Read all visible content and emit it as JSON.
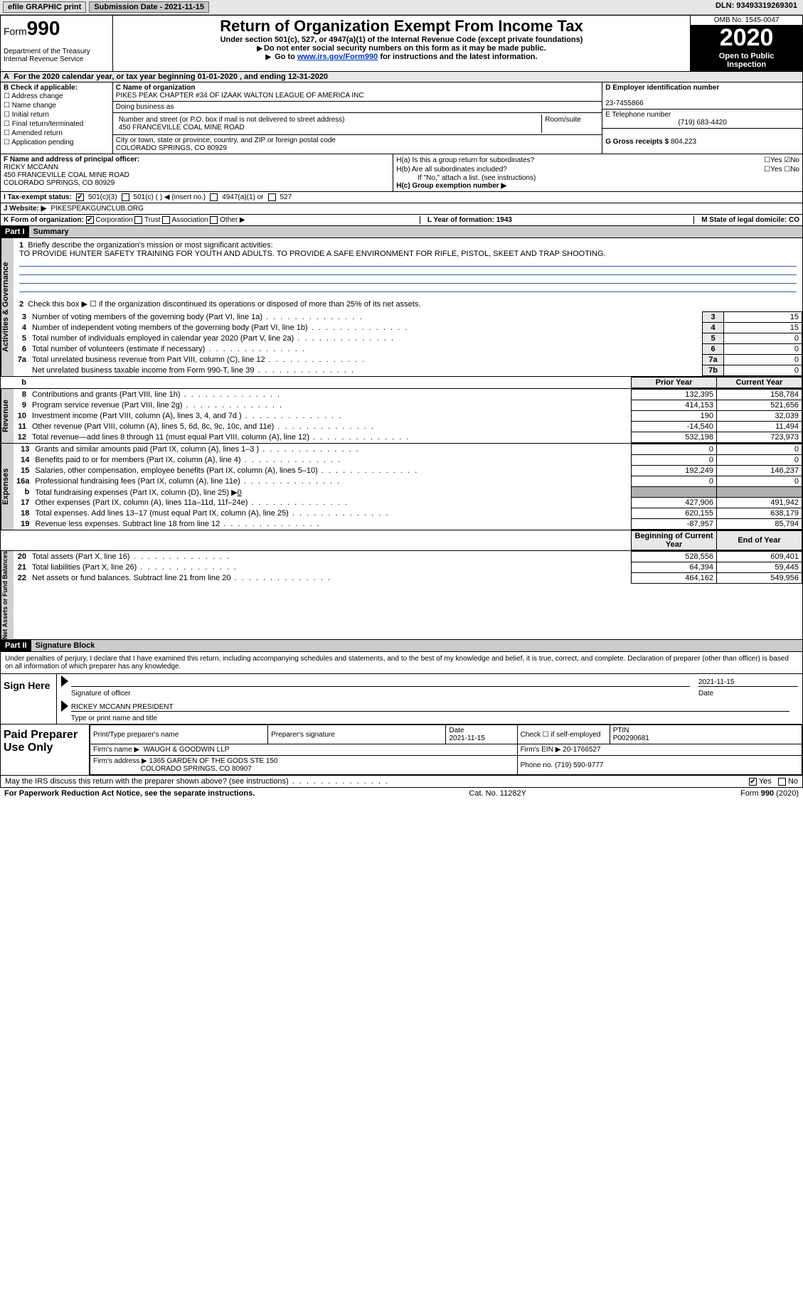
{
  "topbar": {
    "efile": "efile GRAPHIC print",
    "submission_label": "Submission Date - 2021-11-15",
    "dln": "DLN: 93493319269301"
  },
  "header": {
    "form_label": "Form",
    "form_no": "990",
    "dept1": "Department of the Treasury",
    "dept2": "Internal Revenue Service",
    "title": "Return of Organization Exempt From Income Tax",
    "sub1": "Under section 501(c), 527, or 4947(a)(1) of the Internal Revenue Code (except private foundations)",
    "sub2": "Do not enter social security numbers on this form as it may be made public.",
    "sub3_pre": "Go to ",
    "sub3_link": "www.irs.gov/Form990",
    "sub3_post": " for instructions and the latest information.",
    "omb": "OMB No. 1545-0047",
    "year": "2020",
    "inspect1": "Open to Public",
    "inspect2": "Inspection"
  },
  "tax_year_line": "For the 2020 calendar year, or tax year beginning 01-01-2020   , and ending 12-31-2020",
  "box_b": {
    "title": "B Check if applicable:",
    "items": [
      "Address change",
      "Name change",
      "Initial return",
      "Final return/terminated",
      "Amended return",
      "Application pending"
    ]
  },
  "box_c": {
    "name_label": "C Name of organization",
    "name": "PIKES PEAK CHAPTER #34 OF IZAAK WALTON LEAGUE OF AMERICA INC",
    "dba_label": "Doing business as",
    "street_label": "Number and street (or P.O. box if mail is not delivered to street address)",
    "street": "450 FRANCEVILLE COAL MINE ROAD",
    "room_label": "Room/suite",
    "city_label": "City or town, state or province, country, and ZIP or foreign postal code",
    "city": "COLORADO SPRINGS, CO  80929"
  },
  "box_d": {
    "ein_label": "D Employer identification number",
    "ein": "23-7455866",
    "phone_label": "E Telephone number",
    "phone": "(719) 683-4420",
    "gross_label": "G Gross receipts $ ",
    "gross": "804,223"
  },
  "box_f": {
    "label": "F  Name and address of principal officer:",
    "name": "RICKY MCCANN",
    "addr1": "450 FRANCEVILLE COAL MINE ROAD",
    "addr2": "COLORADO SPRINGS, CO  80929"
  },
  "box_h": {
    "a_label": "H(a)  Is this a group return for subordinates?",
    "a_yes": "Yes",
    "a_no": "No",
    "b_label": "H(b)  Are all subordinates included?",
    "b_note": "If \"No,\" attach a list. (see instructions)",
    "c_label": "H(c)  Group exemption number ▶"
  },
  "row_i": {
    "label": "I   Tax-exempt status:",
    "o1": "501(c)(3)",
    "o2": "501(c) (  ) ◀ (insert no.)",
    "o3": "4947(a)(1) or",
    "o4": "527"
  },
  "row_j": {
    "label": "J   Website: ▶",
    "value": "PIKESPEAKGUNCLUB.ORG"
  },
  "row_k": {
    "label": "K Form of organization:",
    "o1": "Corporation",
    "o2": "Trust",
    "o3": "Association",
    "o4": "Other ▶"
  },
  "row_lm": {
    "l": "L Year of formation: 1943",
    "m": "M State of legal domicile: CO"
  },
  "part1": {
    "head": "Part I",
    "title": "Summary",
    "vtab1": "Activities & Governance",
    "q1": "Briefly describe the organization's mission or most significant activities:",
    "mission": "TO PROVIDE HUNTER SAFETY TRAINING FOR YOUTH AND ADULTS. TO PROVIDE A SAFE ENVIRONMENT FOR RIFLE, PISTOL, SKEET AND TRAP SHOOTING.",
    "q2": "Check this box ▶ ☐  if the organization discontinued its operations or disposed of more than 25% of its net assets.",
    "lines_gov": [
      {
        "n": "3",
        "d": "Number of voting members of the governing body (Part VI, line 1a)",
        "lab": "3",
        "v": "15"
      },
      {
        "n": "4",
        "d": "Number of independent voting members of the governing body (Part VI, line 1b)",
        "lab": "4",
        "v": "15"
      },
      {
        "n": "5",
        "d": "Total number of individuals employed in calendar year 2020 (Part V, line 2a)",
        "lab": "5",
        "v": "0"
      },
      {
        "n": "6",
        "d": "Total number of volunteers (estimate if necessary)",
        "lab": "6",
        "v": "0"
      },
      {
        "n": "7a",
        "d": "Total unrelated business revenue from Part VIII, column (C), line 12",
        "lab": "7a",
        "v": "0"
      },
      {
        "n": "",
        "d": "Net unrelated business taxable income from Form 990-T, line 39",
        "lab": "7b",
        "v": "0"
      }
    ],
    "hdr_prior": "Prior Year",
    "hdr_curr": "Current Year",
    "vtab2": "Revenue",
    "rev": [
      {
        "n": "8",
        "d": "Contributions and grants (Part VIII, line 1h)",
        "p": "132,395",
        "c": "158,784"
      },
      {
        "n": "9",
        "d": "Program service revenue (Part VIII, line 2g)",
        "p": "414,153",
        "c": "521,656"
      },
      {
        "n": "10",
        "d": "Investment income (Part VIII, column (A), lines 3, 4, and 7d )",
        "p": "190",
        "c": "32,039"
      },
      {
        "n": "11",
        "d": "Other revenue (Part VIII, column (A), lines 5, 6d, 8c, 9c, 10c, and 11e)",
        "p": "-14,540",
        "c": "11,494"
      },
      {
        "n": "12",
        "d": "Total revenue—add lines 8 through 11 (must equal Part VIII, column (A), line 12)",
        "p": "532,198",
        "c": "723,973"
      }
    ],
    "vtab3": "Expenses",
    "exp": [
      {
        "n": "13",
        "d": "Grants and similar amounts paid (Part IX, column (A), lines 1–3 )",
        "p": "0",
        "c": "0"
      },
      {
        "n": "14",
        "d": "Benefits paid to or for members (Part IX, column (A), line 4)",
        "p": "0",
        "c": "0"
      },
      {
        "n": "15",
        "d": "Salaries, other compensation, employee benefits (Part IX, column (A), lines 5–10)",
        "p": "192,249",
        "c": "146,237"
      },
      {
        "n": "16a",
        "d": "Professional fundraising fees (Part IX, column (A), line 11e)",
        "p": "0",
        "c": "0"
      }
    ],
    "exp_b": {
      "n": "b",
      "d": "Total fundraising expenses (Part IX, column (D), line 25) ▶",
      "v": "0"
    },
    "exp2": [
      {
        "n": "17",
        "d": "Other expenses (Part IX, column (A), lines 11a–11d, 11f–24e)",
        "p": "427,906",
        "c": "491,942"
      },
      {
        "n": "18",
        "d": "Total expenses. Add lines 13–17 (must equal Part IX, column (A), line 25)",
        "p": "620,155",
        "c": "638,179"
      },
      {
        "n": "19",
        "d": "Revenue less expenses. Subtract line 18 from line 12",
        "p": "-87,957",
        "c": "85,794"
      }
    ],
    "hdr_boy": "Beginning of Current Year",
    "hdr_eoy": "End of Year",
    "vtab4": "Net Assets or Fund Balances",
    "net": [
      {
        "n": "20",
        "d": "Total assets (Part X, line 16)",
        "p": "528,556",
        "c": "609,401"
      },
      {
        "n": "21",
        "d": "Total liabilities (Part X, line 26)",
        "p": "64,394",
        "c": "59,445"
      },
      {
        "n": "22",
        "d": "Net assets or fund balances. Subtract line 21 from line 20",
        "p": "464,162",
        "c": "549,956"
      }
    ]
  },
  "part2": {
    "head": "Part II",
    "title": "Signature Block",
    "decl": "Under penalties of perjury, I declare that I have examined this return, including accompanying schedules and statements, and to the best of my knowledge and belief, it is true, correct, and complete. Declaration of preparer (other than officer) is based on all information of which preparer has any knowledge.",
    "sign_here": "Sign Here",
    "sig_officer": "Signature of officer",
    "sig_date": "2021-11-15",
    "date_lbl": "Date",
    "officer": "RICKEY MCCANN  PRESIDENT",
    "officer_lbl": "Type or print name and title",
    "paid": "Paid Preparer Use Only",
    "p_name_lbl": "Print/Type preparer's name",
    "p_sig_lbl": "Preparer's signature",
    "p_date_lbl": "Date",
    "p_date": "2021-11-15",
    "p_check": "Check ☐ if self-employed",
    "ptin_lbl": "PTIN",
    "ptin": "P00290681",
    "firm_name_lbl": "Firm's name   ▶",
    "firm_name": "WAUGH & GOODWIN LLP",
    "firm_ein_lbl": "Firm's EIN ▶",
    "firm_ein": "20-1766527",
    "firm_addr_lbl": "Firm's address ▶",
    "firm_addr1": "1365 GARDEN OF THE GODS STE 150",
    "firm_addr2": "COLORADO SPRINGS, CO  80907",
    "firm_phone_lbl": "Phone no.",
    "firm_phone": "(719) 590-9777"
  },
  "footer": {
    "q": "May the IRS discuss this return with the preparer shown above? (see instructions)",
    "yes": "Yes",
    "no": "No",
    "paperwork": "For Paperwork Reduction Act Notice, see the separate instructions.",
    "cat": "Cat. No. 11282Y",
    "form": "Form 990 (2020)"
  }
}
